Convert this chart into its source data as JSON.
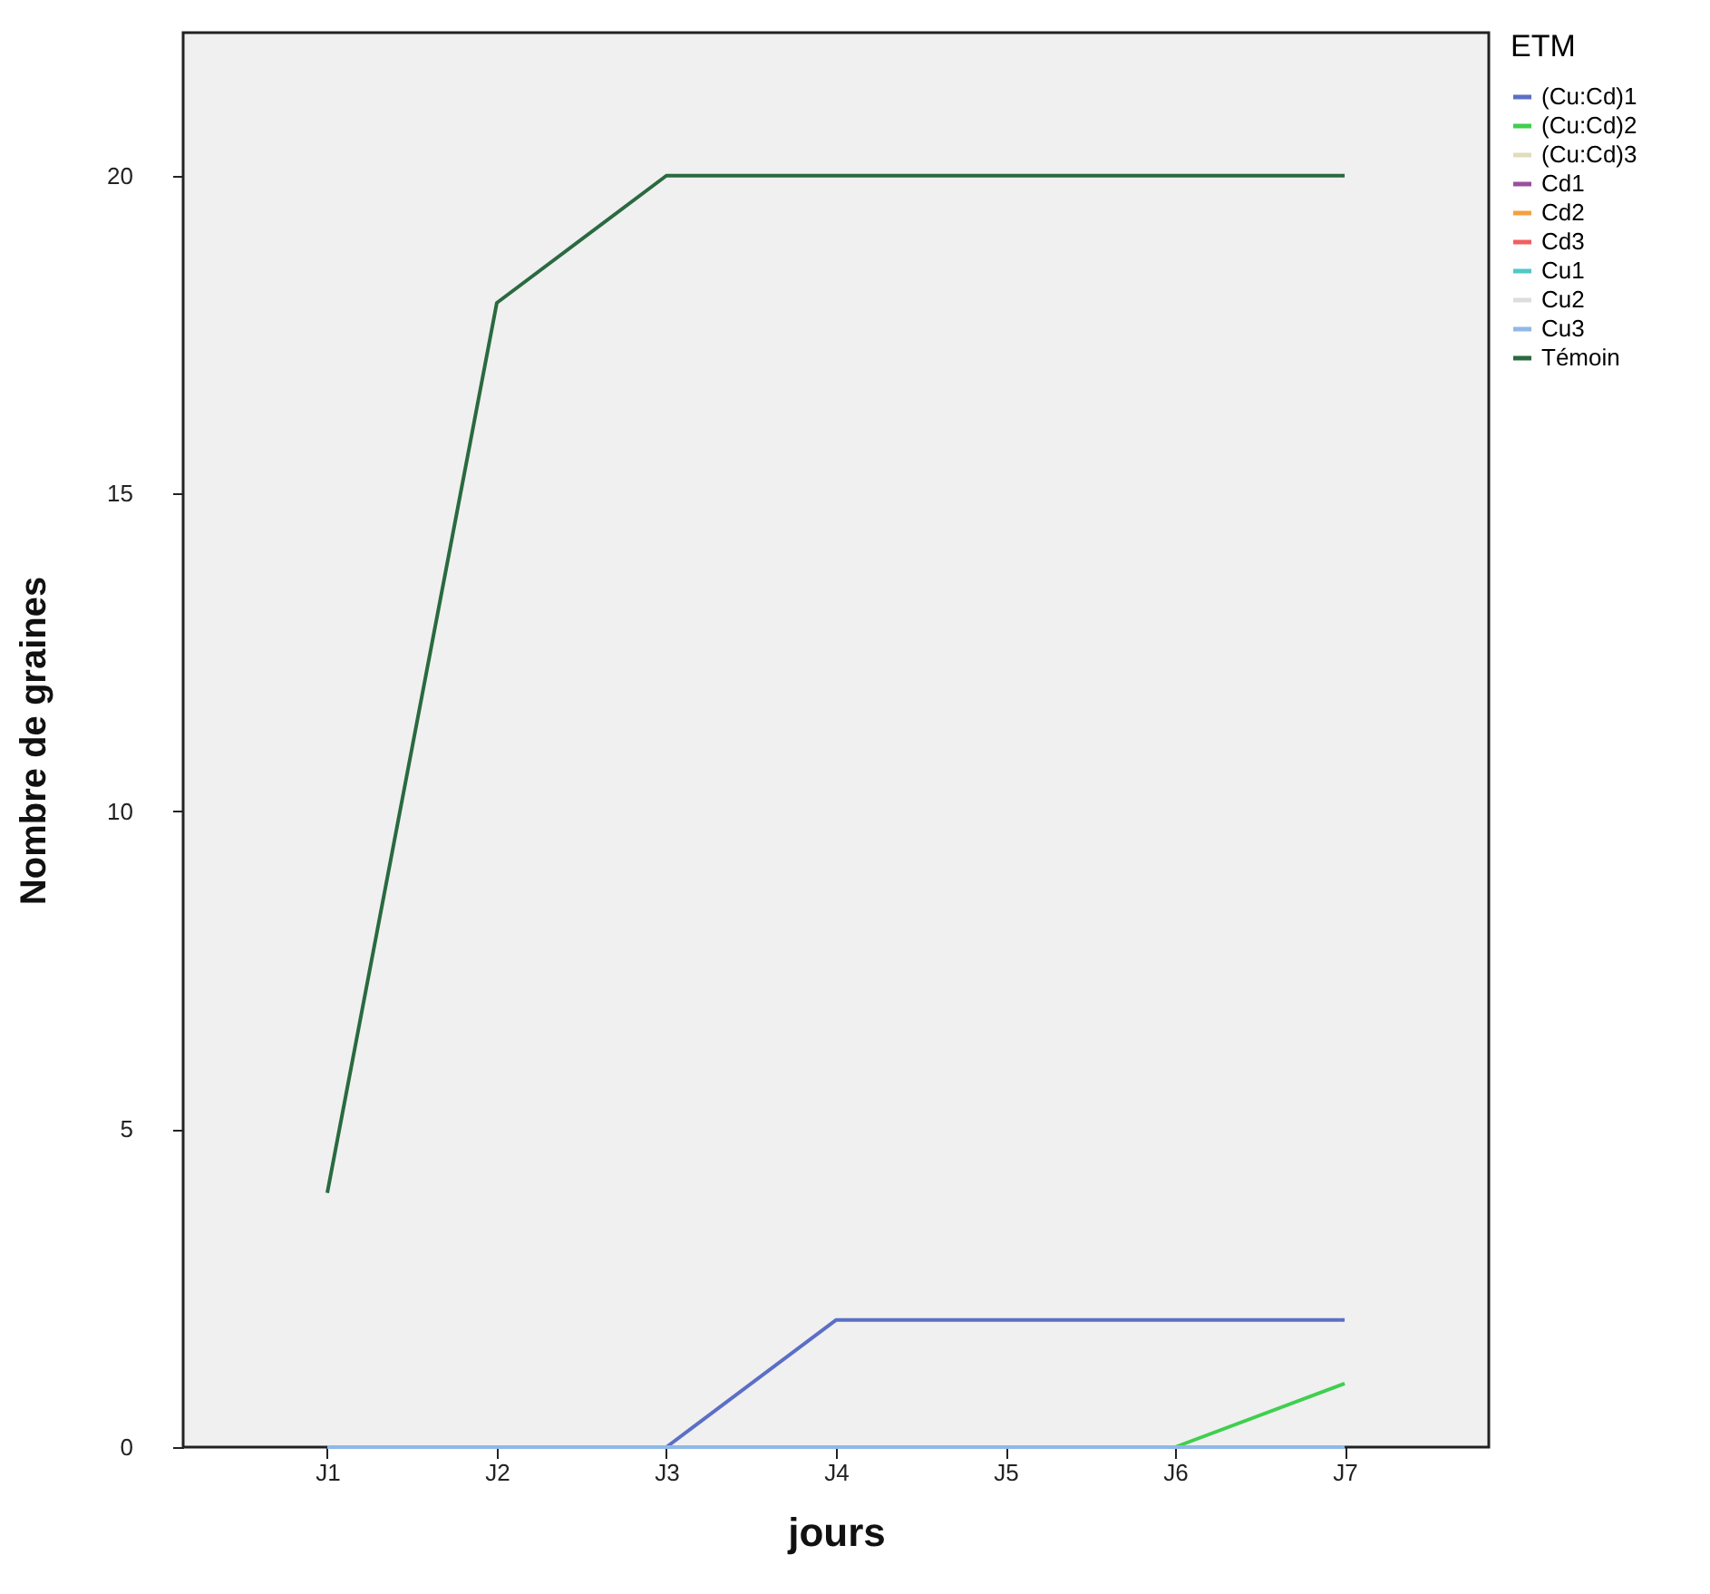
{
  "chart_data": {
    "type": "line",
    "xlabel": "jours",
    "ylabel": "Nombre de graines",
    "legend_title": "ETM",
    "legend": "top right",
    "grid": false,
    "marker": "none",
    "line_style": "solid",
    "categories": [
      "J1",
      "J2",
      "J3",
      "J4",
      "J5",
      "J6",
      "J7"
    ],
    "ylim": [
      0,
      22.25
    ],
    "yticks": [
      0,
      5,
      10,
      15,
      20
    ],
    "series": [
      {
        "name": "(Cu:Cd)1",
        "color": "#5b6fc6",
        "values": [
          null,
          null,
          0,
          2,
          2,
          2,
          2
        ]
      },
      {
        "name": "(Cu:Cd)2",
        "color": "#3fcf4f",
        "values": [
          null,
          null,
          null,
          null,
          null,
          0,
          1
        ]
      },
      {
        "name": "(Cu:Cd)3",
        "color": "#e0dcbc",
        "values": [
          null,
          null,
          null,
          null,
          null,
          null,
          null
        ]
      },
      {
        "name": "Cd1",
        "color": "#9b4f9f",
        "values": [
          null,
          null,
          null,
          null,
          null,
          null,
          null
        ]
      },
      {
        "name": "Cd2",
        "color": "#f5a040",
        "values": [
          null,
          null,
          null,
          null,
          null,
          null,
          null
        ]
      },
      {
        "name": "Cd3",
        "color": "#f06060",
        "values": [
          null,
          null,
          null,
          null,
          null,
          null,
          null
        ]
      },
      {
        "name": "Cu1",
        "color": "#50c8c8",
        "values": [
          null,
          null,
          null,
          null,
          null,
          null,
          null
        ]
      },
      {
        "name": "Cu2",
        "color": "#dddddd",
        "values": [
          null,
          null,
          null,
          null,
          null,
          null,
          null
        ]
      },
      {
        "name": "Cu3",
        "color": "#90b8e8",
        "values": [
          0,
          0,
          0,
          0,
          0,
          0,
          0
        ]
      },
      {
        "name": "Témoin",
        "color": "#2a6a40",
        "values": [
          4,
          18,
          20,
          20,
          20,
          20,
          20
        ]
      }
    ]
  }
}
